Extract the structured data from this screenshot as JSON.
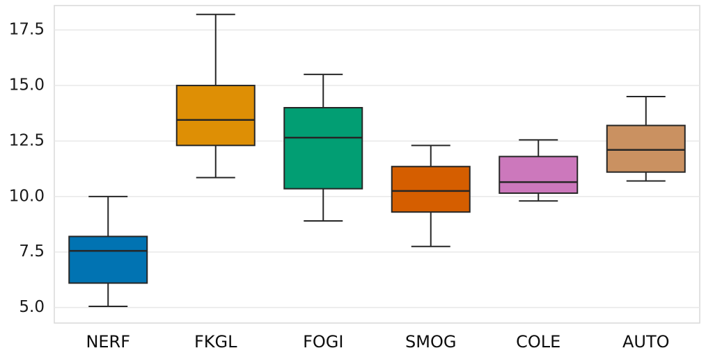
{
  "chart_data": {
    "type": "boxplot",
    "title": "",
    "xlabel": "",
    "ylabel": "",
    "grid": true,
    "categories": [
      "NERF",
      "FKGL",
      "FOGI",
      "SMOG",
      "COLE",
      "AUTO"
    ],
    "series": [
      {
        "name": "NERF",
        "whisker_low": 5.05,
        "q1": 6.1,
        "median": 7.55,
        "q3": 8.2,
        "whisker_high": 10.0,
        "color": "#0173b2"
      },
      {
        "name": "FKGL",
        "whisker_low": 10.85,
        "q1": 12.3,
        "median": 13.45,
        "q3": 15.0,
        "whisker_high": 18.2,
        "color": "#de8f05"
      },
      {
        "name": "FOGI",
        "whisker_low": 8.9,
        "q1": 10.35,
        "median": 12.65,
        "q3": 14.0,
        "whisker_high": 15.5,
        "color": "#029e73"
      },
      {
        "name": "SMOG",
        "whisker_low": 7.75,
        "q1": 9.3,
        "median": 10.25,
        "q3": 11.35,
        "whisker_high": 12.3,
        "color": "#d55e00"
      },
      {
        "name": "COLE",
        "whisker_low": 9.8,
        "q1": 10.15,
        "median": 10.65,
        "q3": 11.8,
        "whisker_high": 12.55,
        "color": "#cc78bc"
      },
      {
        "name": "AUTO",
        "whisker_low": 10.7,
        "q1": 11.1,
        "median": 12.1,
        "q3": 13.2,
        "whisker_high": 14.5,
        "color": "#ca9161"
      }
    ],
    "yticks": [
      {
        "value": 5.0,
        "label": "5.0"
      },
      {
        "value": 7.5,
        "label": "7.5"
      },
      {
        "value": 10.0,
        "label": "10.0"
      },
      {
        "value": 12.5,
        "label": "12.5"
      },
      {
        "value": 15.0,
        "label": "15.0"
      },
      {
        "value": 17.5,
        "label": "17.5"
      }
    ],
    "ylim": [
      4.3,
      18.6
    ],
    "legend": "none"
  },
  "style_colors": {
    "box_edge": "#262626",
    "median_line": "#262626",
    "grid_line": "#e8e8e8",
    "plot_frame": "#d8d8d8",
    "tick_label": "#1a1a1a",
    "category_label": "#0d0d0d",
    "background": "#ffffff"
  }
}
